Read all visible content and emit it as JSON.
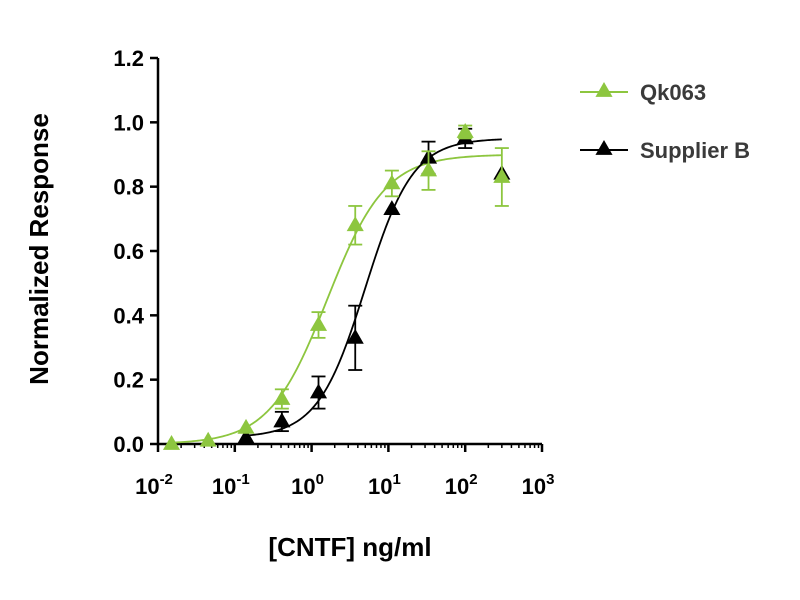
{
  "chart_data": {
    "type": "scatter",
    "xscale": "log",
    "xlim": [
      0.01,
      1000
    ],
    "ylim": [
      0,
      1.2
    ],
    "xticks": [
      {
        "value": 0.01,
        "base": "10",
        "exp": "-2"
      },
      {
        "value": 0.1,
        "base": "10",
        "exp": "-1"
      },
      {
        "value": 1,
        "base": "10",
        "exp": "0"
      },
      {
        "value": 10,
        "base": "10",
        "exp": "1"
      },
      {
        "value": 100,
        "base": "10",
        "exp": "2"
      },
      {
        "value": 1000,
        "base": "10",
        "exp": "3"
      }
    ],
    "yticks": [
      "0.0",
      "0.2",
      "0.4",
      "0.6",
      "0.8",
      "1.0",
      "1.2"
    ],
    "xlabel": "[CNTF] ng/ml",
    "ylabel": "Normalized Response",
    "legend_position": "right",
    "marker": "triangle",
    "fitted_curve": "sigmoidal",
    "series": [
      {
        "name": "Qk063",
        "color": "#8dc63f",
        "points": [
          {
            "x": 0.015,
            "y": 0.0,
            "err": 0.0
          },
          {
            "x": 0.045,
            "y": 0.01,
            "err": 0.0
          },
          {
            "x": 0.14,
            "y": 0.05,
            "err": 0.0
          },
          {
            "x": 0.41,
            "y": 0.14,
            "err": 0.03
          },
          {
            "x": 1.23,
            "y": 0.37,
            "err": 0.04
          },
          {
            "x": 3.7,
            "y": 0.68,
            "err": 0.06
          },
          {
            "x": 11.1,
            "y": 0.81,
            "err": 0.04
          },
          {
            "x": 33.3,
            "y": 0.85,
            "err": 0.06
          },
          {
            "x": 100,
            "y": 0.97,
            "err": 0.02
          },
          {
            "x": 300,
            "y": 0.83,
            "err": 0.09
          }
        ],
        "fit": {
          "bottom": 0.0,
          "top": 0.9,
          "ec50": 1.6,
          "hill": 1.15
        }
      },
      {
        "name": "Supplier B",
        "color": "#000000",
        "points": [
          {
            "x": 0.14,
            "y": 0.02,
            "err": 0.0
          },
          {
            "x": 0.41,
            "y": 0.07,
            "err": 0.03
          },
          {
            "x": 1.23,
            "y": 0.16,
            "err": 0.05
          },
          {
            "x": 3.7,
            "y": 0.33,
            "err": 0.1
          },
          {
            "x": 11.1,
            "y": 0.73,
            "err": 0.0
          },
          {
            "x": 33.3,
            "y": 0.89,
            "err": 0.05
          },
          {
            "x": 100,
            "y": 0.95,
            "err": 0.03
          },
          {
            "x": 300,
            "y": 0.84,
            "err": 0.0
          }
        ],
        "fit": {
          "bottom": 0.02,
          "top": 0.95,
          "ec50": 5.0,
          "hill": 1.4
        }
      }
    ]
  }
}
